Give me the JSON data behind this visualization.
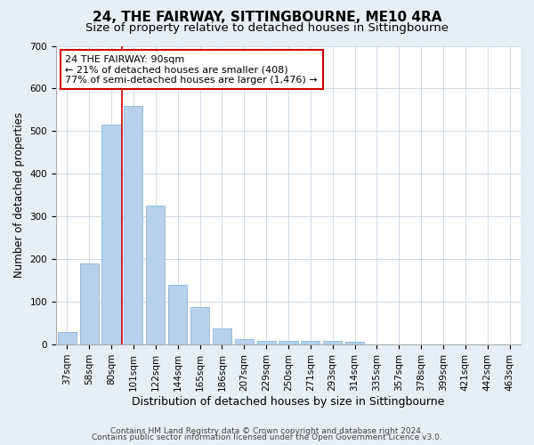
{
  "title": "24, THE FAIRWAY, SITTINGBOURNE, ME10 4RA",
  "subtitle": "Size of property relative to detached houses in Sittingbourne",
  "xlabel": "Distribution of detached houses by size in Sittingbourne",
  "ylabel": "Number of detached properties",
  "footer_line1": "Contains HM Land Registry data © Crown copyright and database right 2024.",
  "footer_line2": "Contains public sector information licensed under the Open Government Licence v3.0.",
  "categories": [
    "37sqm",
    "58sqm",
    "80sqm",
    "101sqm",
    "122sqm",
    "144sqm",
    "165sqm",
    "186sqm",
    "207sqm",
    "229sqm",
    "250sqm",
    "271sqm",
    "293sqm",
    "314sqm",
    "335sqm",
    "357sqm",
    "378sqm",
    "399sqm",
    "421sqm",
    "442sqm",
    "463sqm"
  ],
  "values": [
    30,
    190,
    515,
    560,
    325,
    140,
    88,
    38,
    13,
    8,
    8,
    8,
    8,
    7,
    0,
    0,
    0,
    0,
    0,
    0,
    0
  ],
  "bar_color": "#b8d0ea",
  "bar_edgecolor": "#7aadd4",
  "red_line_x": 2.5,
  "annotation_line1": "24 THE FAIRWAY: 90sqm",
  "annotation_line2": "← 21% of detached houses are smaller (408)",
  "annotation_line3": "77% of semi-detached houses are larger (1,476) →",
  "annotation_box_facecolor": "#ffffff",
  "annotation_box_edgecolor": "#cc0000",
  "ylim": [
    0,
    700
  ],
  "yticks": [
    0,
    100,
    200,
    300,
    400,
    500,
    600,
    700
  ],
  "bg_color": "#e8eef5",
  "plot_bg_color": "#ffffff",
  "grid_color": "#c8d4e0",
  "title_fontsize": 11,
  "subtitle_fontsize": 9.5,
  "xlabel_fontsize": 9,
  "ylabel_fontsize": 8.5,
  "tick_fontsize": 7.5,
  "annotation_fontsize": 8,
  "footer_fontsize": 6.5
}
